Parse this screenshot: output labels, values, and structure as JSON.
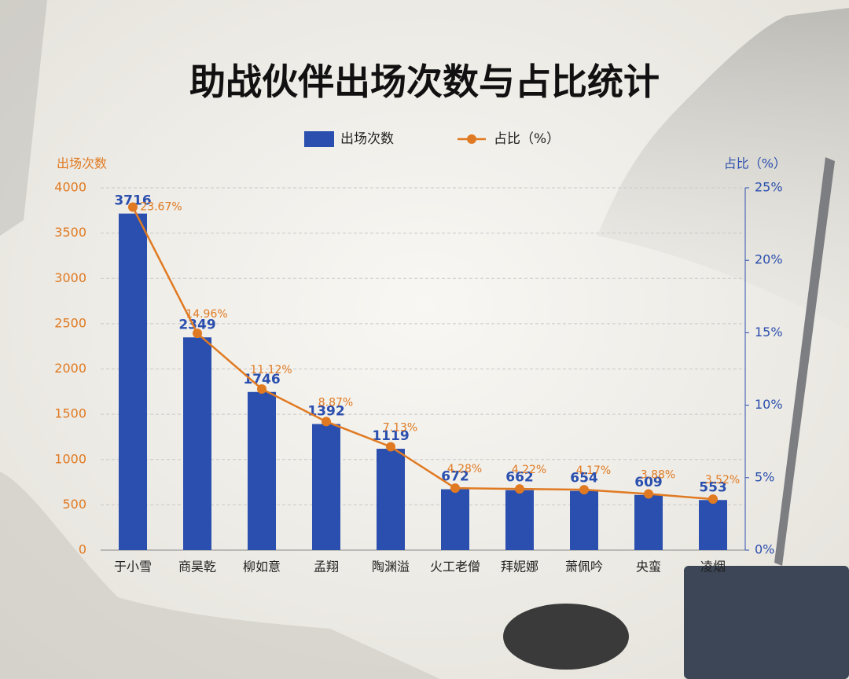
{
  "chart_data": {
    "type": "bar-line",
    "title": "助战伙伴出场次数与占比统计",
    "y_label": "出场次数",
    "y2_label": "占比（%）",
    "categories": [
      "于小雪",
      "商昊乾",
      "柳如意",
      "孟翔",
      "陶渊溢",
      "火工老僧",
      "拜妮娜",
      "萧佩吟",
      "央蛮",
      "凌烟"
    ],
    "series": [
      {
        "name": "出场次数",
        "type": "bar",
        "color": "#2b4fae",
        "values": [
          3716,
          2349,
          1746,
          1392,
          1119,
          672,
          662,
          654,
          609,
          553
        ]
      },
      {
        "name": "占比（%）",
        "type": "line",
        "axis": "y2",
        "color": "#e07a22",
        "values": [
          23.67,
          14.96,
          11.12,
          8.87,
          7.13,
          4.28,
          4.22,
          4.17,
          3.88,
          3.52
        ],
        "value_labels": [
          "23.67%",
          "14.96%",
          "11.12%",
          "8.87%",
          "7.13%",
          "4.28%",
          "4.22%",
          "4.17%",
          "3.88%",
          "3.52%"
        ]
      }
    ],
    "ylim": [
      0,
      4000
    ],
    "yticks": [
      0,
      500,
      1000,
      1500,
      2000,
      2500,
      3000,
      3500,
      4000
    ],
    "y2lim": [
      0,
      25
    ],
    "y2ticks": [
      {
        "value": 0,
        "label": "0%"
      },
      {
        "value": 5,
        "label": "5%"
      },
      {
        "value": 10,
        "label": "10%"
      },
      {
        "value": 15,
        "label": "15%"
      },
      {
        "value": 20,
        "label": "20%"
      },
      {
        "value": 25,
        "label": "25%"
      }
    ],
    "grid": true,
    "legend": "top"
  }
}
